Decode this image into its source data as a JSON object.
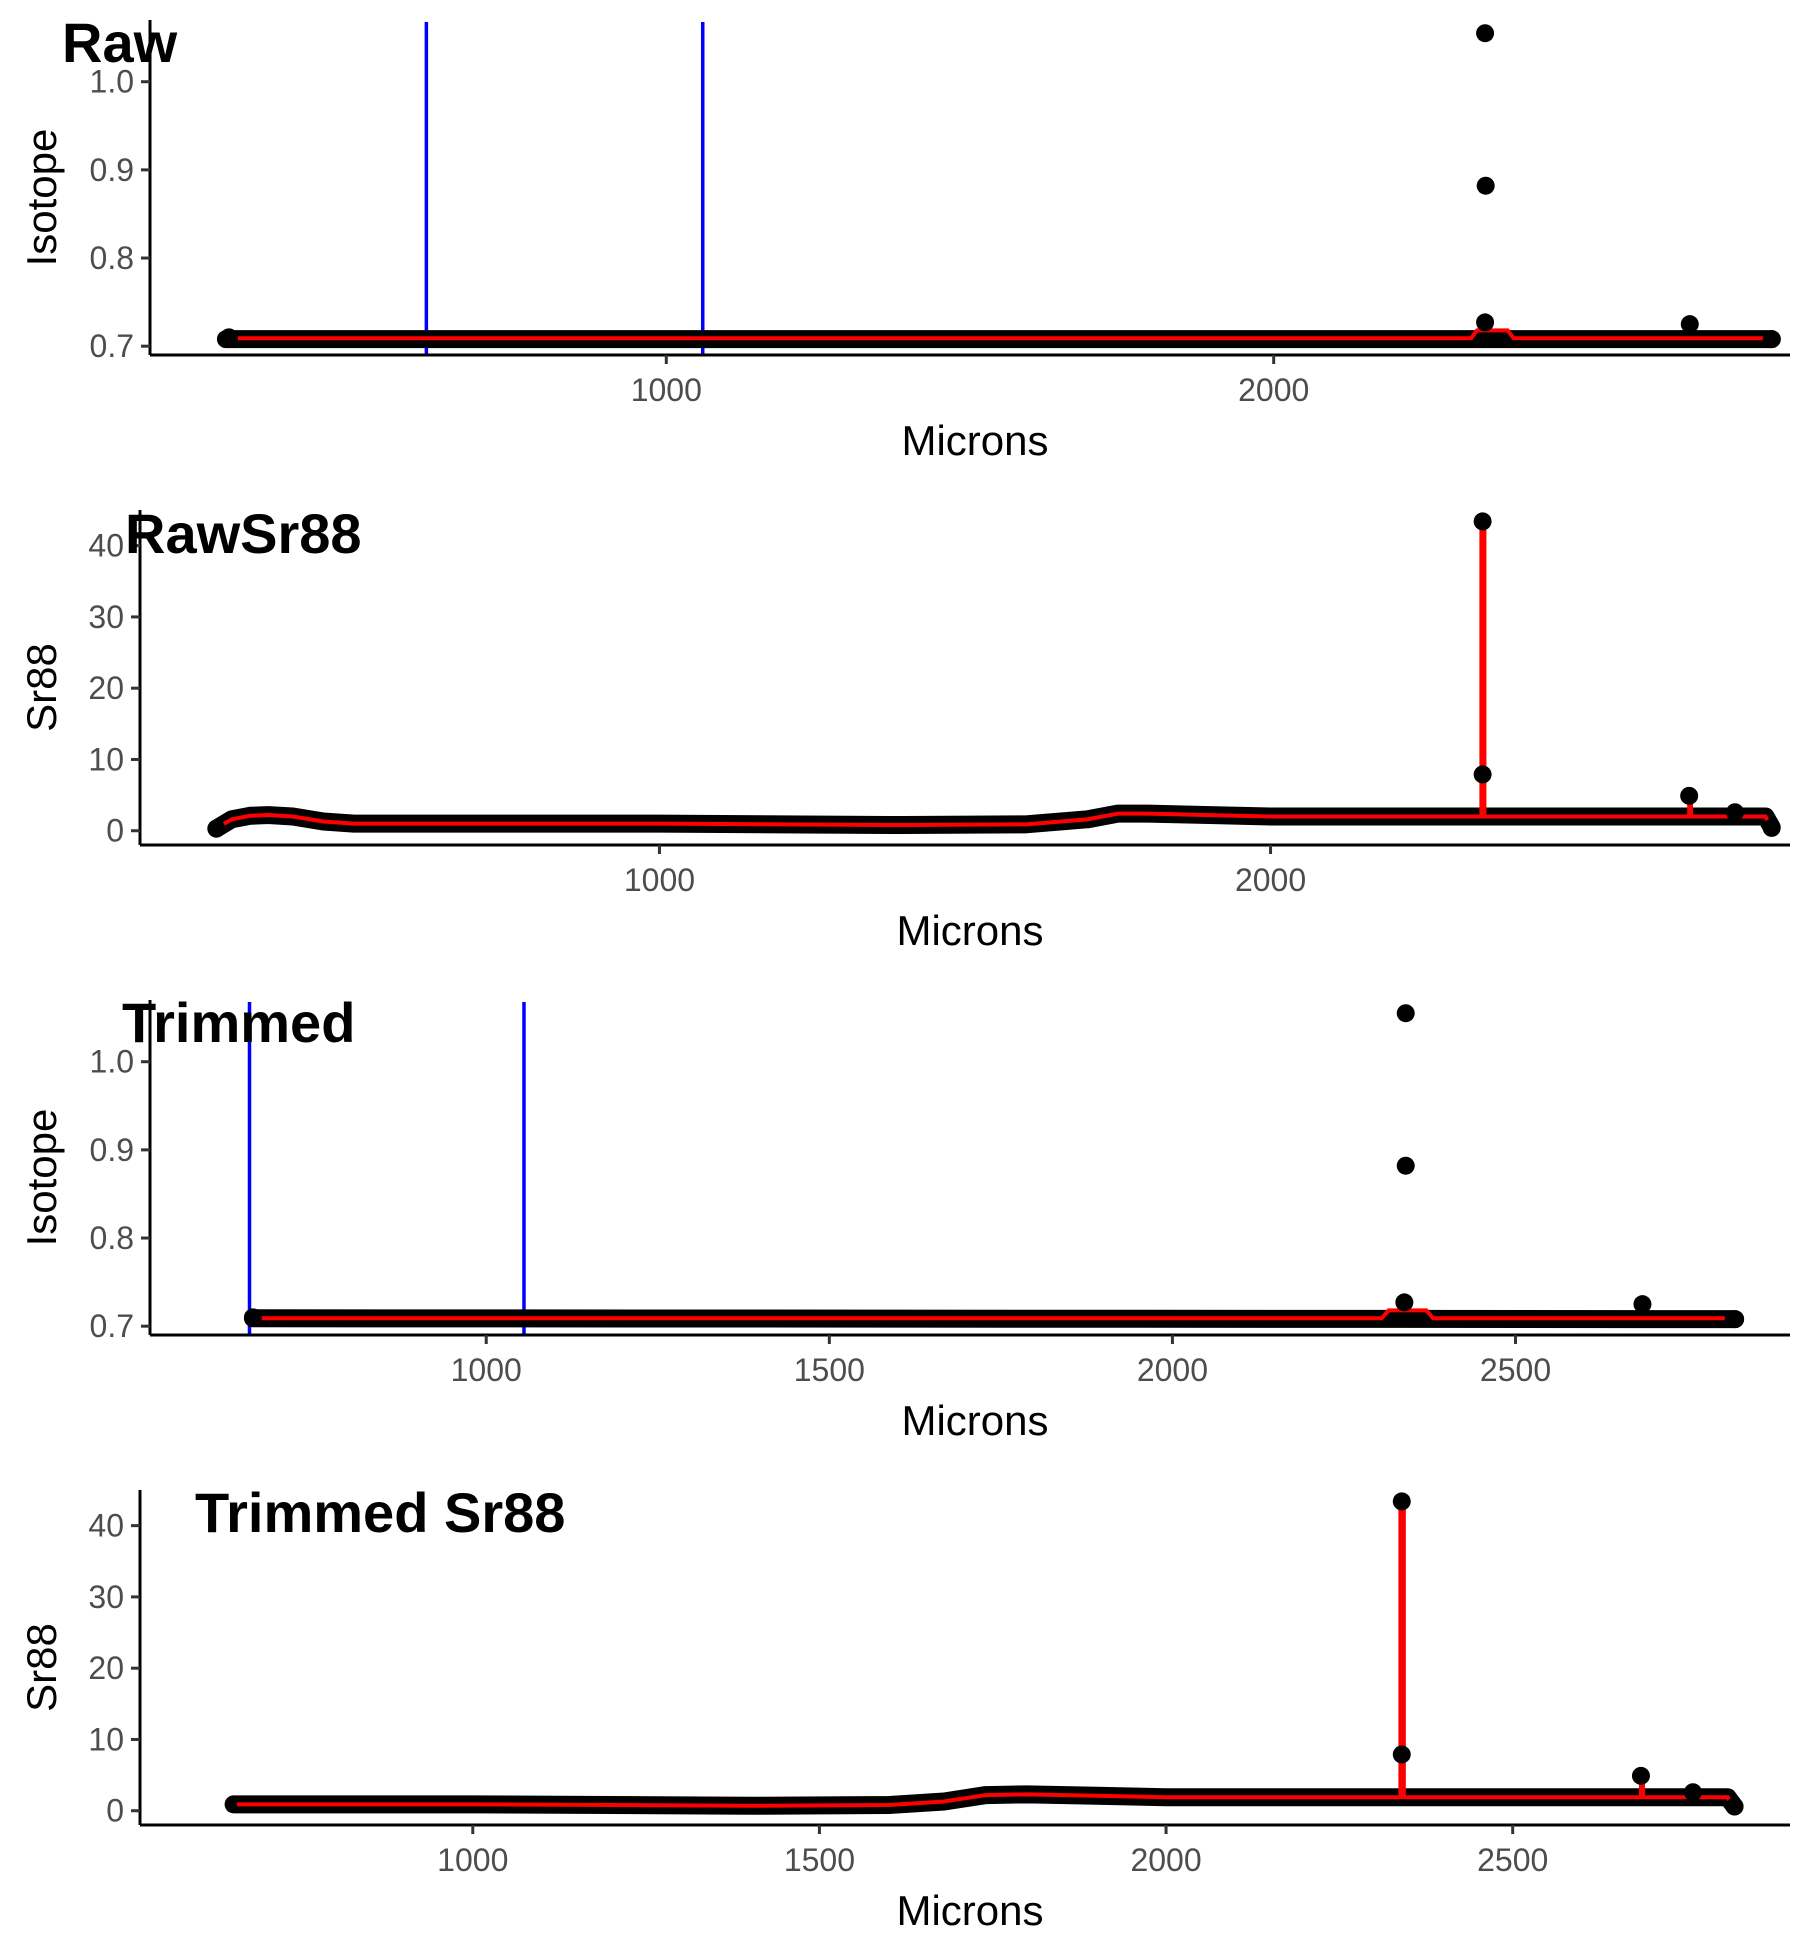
{
  "chart_data": [
    {
      "id": "raw",
      "type": "scatter",
      "title": "Raw",
      "xlabel": "Microns",
      "ylabel": "Isotope",
      "xlim": [
        150,
        2850
      ],
      "ylim": [
        0.69,
        1.07
      ],
      "xticks": [
        1000,
        2000
      ],
      "yticks": [
        0.7,
        0.8,
        0.9,
        1.0
      ],
      "ytick_labels": [
        "0.7",
        "0.8",
        "0.9",
        "1.0"
      ],
      "grid": false,
      "band": [
        [
          275,
          0.708
        ],
        [
          2820,
          0.708
        ]
      ],
      "fit_line": [
        [
          290,
          0.709
        ],
        [
          2325,
          0.709
        ],
        [
          2335,
          0.718
        ],
        [
          2385,
          0.718
        ],
        [
          2395,
          0.709
        ],
        [
          2810,
          0.709
        ]
      ],
      "vlines": [
        605,
        1060
      ],
      "points": [
        [
          2348,
          1.055
        ],
        [
          2349,
          0.882
        ],
        [
          2348,
          0.727
        ],
        [
          2685,
          0.725
        ],
        [
          280,
          0.71
        ],
        [
          2820,
          0.708
        ]
      ]
    },
    {
      "id": "raw-sr88",
      "type": "scatter",
      "title": "RawSr88",
      "xlabel": "Microns",
      "ylabel": "Sr88",
      "xlim": [
        150,
        2850
      ],
      "ylim": [
        -2,
        45
      ],
      "xticks": [
        1000,
        2000
      ],
      "yticks": [
        0,
        10,
        20,
        30,
        40
      ],
      "ytick_labels": [
        "0",
        "10",
        "20",
        "30",
        "40"
      ],
      "grid": false,
      "band": [
        [
          275,
          0.3
        ],
        [
          300,
          1.6
        ],
        [
          330,
          2.1
        ],
        [
          360,
          2.2
        ],
        [
          400,
          2.0
        ],
        [
          450,
          1.3
        ],
        [
          500,
          1.0
        ],
        [
          700,
          1.0
        ],
        [
          1000,
          1.0
        ],
        [
          1200,
          0.9
        ],
        [
          1400,
          0.8
        ],
        [
          1600,
          0.9
        ],
        [
          1700,
          1.6
        ],
        [
          1750,
          2.4
        ],
        [
          1800,
          2.4
        ],
        [
          1900,
          2.2
        ],
        [
          2000,
          2.0
        ],
        [
          2300,
          2.0
        ],
        [
          2500,
          2.0
        ],
        [
          2700,
          2.0
        ],
        [
          2810,
          2.0
        ],
        [
          2820,
          0.5
        ]
      ],
      "fit_line": [
        [
          280,
          0.6
        ],
        [
          300,
          1.6
        ],
        [
          330,
          2.1
        ],
        [
          360,
          2.2
        ],
        [
          400,
          2.0
        ],
        [
          450,
          1.3
        ],
        [
          500,
          1.0
        ],
        [
          700,
          1.0
        ],
        [
          1000,
          1.0
        ],
        [
          1200,
          0.9
        ],
        [
          1400,
          0.8
        ],
        [
          1600,
          0.9
        ],
        [
          1700,
          1.6
        ],
        [
          1750,
          2.4
        ],
        [
          1800,
          2.4
        ],
        [
          1900,
          2.2
        ],
        [
          2000,
          2.0
        ],
        [
          2345,
          2.0
        ],
        [
          2345,
          43.5
        ],
        [
          2350,
          43.5
        ],
        [
          2350,
          2.0
        ],
        [
          2685,
          2.0
        ],
        [
          2685,
          4.8
        ],
        [
          2688,
          4.8
        ],
        [
          2688,
          2.0
        ],
        [
          2810,
          2.0
        ],
        [
          2815,
          1.0
        ]
      ],
      "vlines": [],
      "points": [
        [
          2347,
          43.4
        ],
        [
          2347,
          7.9
        ],
        [
          2685,
          4.9
        ],
        [
          2760,
          2.6
        ],
        [
          275,
          0.3
        ],
        [
          2820,
          0.4
        ]
      ]
    },
    {
      "id": "trimmed",
      "type": "scatter",
      "title": "Trimmed",
      "xlabel": "Microns",
      "ylabel": "Isotope",
      "xlim": [
        510,
        2900
      ],
      "ylim": [
        0.69,
        1.07
      ],
      "xticks": [
        1000,
        1500,
        2000,
        2500
      ],
      "yticks": [
        0.7,
        0.8,
        0.9,
        1.0
      ],
      "ytick_labels": [
        "0.7",
        "0.8",
        "0.9",
        "1.0"
      ],
      "grid": false,
      "band": [
        [
          660,
          0.709
        ],
        [
          2820,
          0.708
        ]
      ],
      "fit_line": [
        [
          670,
          0.709
        ],
        [
          2305,
          0.709
        ],
        [
          2315,
          0.718
        ],
        [
          2370,
          0.718
        ],
        [
          2380,
          0.709
        ],
        [
          2805,
          0.709
        ]
      ],
      "vlines": [
        655,
        1055
      ],
      "points": [
        [
          2340,
          1.055
        ],
        [
          2340,
          0.882
        ],
        [
          2338,
          0.727
        ],
        [
          2685,
          0.725
        ],
        [
          660,
          0.71
        ],
        [
          2820,
          0.708
        ]
      ]
    },
    {
      "id": "trimmed-sr88",
      "type": "scatter",
      "title": "Trimmed Sr88",
      "xlabel": "Microns",
      "ylabel": "Sr88",
      "xlim": [
        520,
        2900
      ],
      "ylim": [
        -2,
        45
      ],
      "xticks": [
        1000,
        1500,
        2000,
        2500
      ],
      "yticks": [
        0,
        10,
        20,
        30,
        40
      ],
      "ytick_labels": [
        "0",
        "10",
        "20",
        "30",
        "40"
      ],
      "grid": false,
      "band": [
        [
          655,
          0.9
        ],
        [
          800,
          0.9
        ],
        [
          1000,
          0.9
        ],
        [
          1200,
          0.8
        ],
        [
          1400,
          0.7
        ],
        [
          1600,
          0.8
        ],
        [
          1680,
          1.3
        ],
        [
          1740,
          2.2
        ],
        [
          1800,
          2.3
        ],
        [
          1900,
          2.1
        ],
        [
          2000,
          1.9
        ],
        [
          2300,
          1.9
        ],
        [
          2500,
          1.9
        ],
        [
          2700,
          1.9
        ],
        [
          2810,
          1.9
        ],
        [
          2820,
          0.6
        ]
      ],
      "fit_line": [
        [
          660,
          0.9
        ],
        [
          800,
          0.9
        ],
        [
          1000,
          0.9
        ],
        [
          1200,
          0.8
        ],
        [
          1400,
          0.7
        ],
        [
          1600,
          0.8
        ],
        [
          1680,
          1.3
        ],
        [
          1740,
          2.2
        ],
        [
          1800,
          2.3
        ],
        [
          1900,
          2.1
        ],
        [
          2000,
          1.9
        ],
        [
          2338,
          1.9
        ],
        [
          2338,
          43.5
        ],
        [
          2343,
          43.5
        ],
        [
          2343,
          1.9
        ],
        [
          2685,
          1.9
        ],
        [
          2685,
          4.8
        ],
        [
          2688,
          4.8
        ],
        [
          2688,
          1.9
        ],
        [
          2810,
          1.9
        ],
        [
          2815,
          1.0
        ]
      ],
      "vlines": [],
      "points": [
        [
          2340,
          43.4
        ],
        [
          2340,
          7.9
        ],
        [
          2685,
          4.9
        ],
        [
          2760,
          2.6
        ],
        [
          2820,
          0.6
        ]
      ]
    }
  ]
}
